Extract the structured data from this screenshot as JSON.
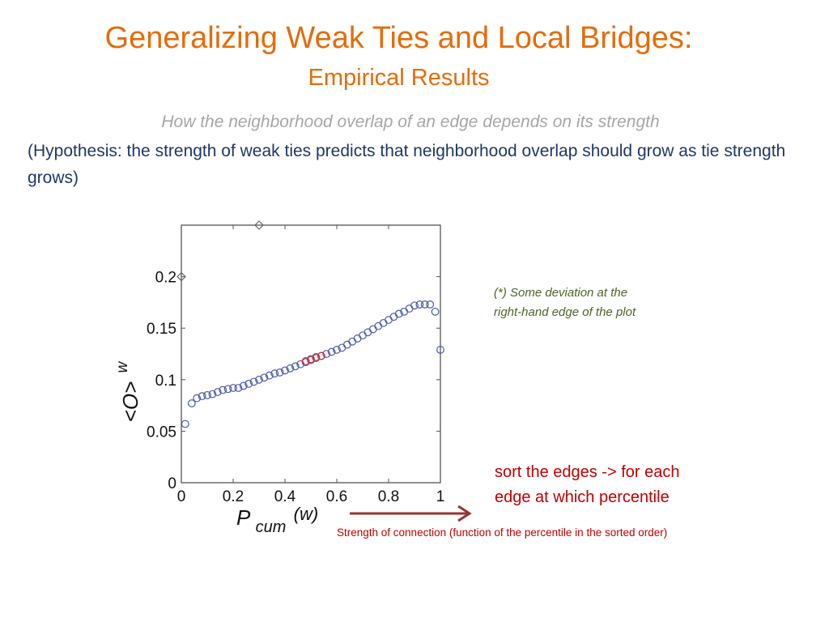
{
  "slide": {
    "title": "Generalizing Weak Ties and Local Bridges:",
    "subtitle": "Empirical Results",
    "question": "How the neighborhood overlap of an edge depends on its strength",
    "hypothesis": "(Hypothesis: the strength of weak ties predicts that neighborhood overlap should grow as tie strength grows)",
    "note_line1": "(*) Some deviation at the",
    "note_line2": "right-hand edge of the plot",
    "sort_line1": "sort the edges -> for each",
    "sort_line2": "edge at which percentile",
    "strength_label": "Strength of connection (function of the percentile in the sorted order)"
  },
  "colors": {
    "title": "#e46c0a",
    "question": "#a6a6a6",
    "hypothesis": "#1f3864",
    "note": "#4f6228",
    "annotation": "#c00000",
    "arrow": "#943634",
    "marker": "#4a5aa8",
    "marker_highlight": "#d03030"
  },
  "chart_data": {
    "type": "scatter",
    "title": "",
    "xlabel": "P_cum(w)",
    "xlabel_main": "P",
    "xlabel_sub": "cum",
    "xlabel_arg": "(w)",
    "ylabel": "<O>_w",
    "ylabel_main": "<O>",
    "ylabel_sub": "w",
    "xlim": [
      0,
      1
    ],
    "ylim": [
      0,
      0.25
    ],
    "xticks": [
      0,
      0.2,
      0.4,
      0.6,
      0.8,
      1
    ],
    "xtick_labels": [
      "0",
      "0.2",
      "0.4",
      "0.6",
      "0.8",
      "1"
    ],
    "yticks": [
      0,
      0.05,
      0.1,
      0.15,
      0.2
    ],
    "ytick_labels": [
      "0",
      "0.05",
      "0.1",
      "0.15",
      "0.2"
    ],
    "grid": false,
    "series": [
      {
        "marker": "circle",
        "color": "#4a5aa8",
        "x": [
          0.015,
          0.04,
          0.06,
          0.08,
          0.1,
          0.12,
          0.14,
          0.16,
          0.18,
          0.2,
          0.22,
          0.24,
          0.26,
          0.28,
          0.3,
          0.32,
          0.34,
          0.36,
          0.38,
          0.4,
          0.42,
          0.44,
          0.46,
          0.48,
          0.5,
          0.52,
          0.54,
          0.56,
          0.58,
          0.6,
          0.62,
          0.64,
          0.66,
          0.68,
          0.7,
          0.72,
          0.74,
          0.76,
          0.78,
          0.8,
          0.82,
          0.84,
          0.86,
          0.88,
          0.9,
          0.92,
          0.94,
          0.96,
          0.98,
          1.0
        ],
        "y": [
          0.057,
          0.077,
          0.082,
          0.084,
          0.085,
          0.086,
          0.088,
          0.09,
          0.091,
          0.092,
          0.092,
          0.094,
          0.096,
          0.098,
          0.1,
          0.102,
          0.104,
          0.106,
          0.107,
          0.109,
          0.111,
          0.113,
          0.115,
          0.117,
          0.119,
          0.121,
          0.123,
          0.125,
          0.127,
          0.129,
          0.131,
          0.134,
          0.137,
          0.14,
          0.143,
          0.146,
          0.149,
          0.152,
          0.155,
          0.158,
          0.161,
          0.164,
          0.166,
          0.169,
          0.172,
          0.173,
          0.173,
          0.173,
          0.166,
          0.129
        ]
      },
      {
        "marker": "circle",
        "color": "#d03030",
        "x": [
          0.48,
          0.5,
          0.52,
          0.54
        ],
        "y": [
          0.118,
          0.12,
          0.122,
          0.123
        ]
      },
      {
        "marker": "diamond",
        "color": "#666666",
        "x": [
          0.3
        ],
        "y": [
          0.25
        ]
      },
      {
        "marker": "diamond",
        "color": "#666666",
        "x": [
          0.0
        ],
        "y": [
          0.2
        ]
      }
    ]
  }
}
